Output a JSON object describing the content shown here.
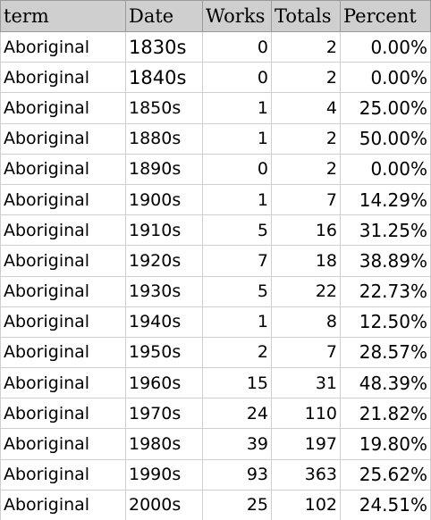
{
  "spreadsheet": {
    "columns": [
      "term",
      "Date",
      "Works",
      "Totals",
      "Percent"
    ],
    "rows": [
      [
        "Aboriginal",
        "1830s",
        "0",
        "2",
        "0.00%"
      ],
      [
        "Aboriginal",
        "1840s",
        "0",
        "2",
        "0.00%"
      ],
      [
        "Aboriginal",
        "1850s",
        "1",
        "4",
        "25.00%"
      ],
      [
        "Aboriginal",
        "1880s",
        "1",
        "2",
        "50.00%"
      ],
      [
        "Aboriginal",
        "1890s",
        "0",
        "2",
        "0.00%"
      ],
      [
        "Aboriginal",
        "1900s",
        "1",
        "7",
        "14.29%"
      ],
      [
        "Aboriginal",
        "1910s",
        "5",
        "16",
        "31.25%"
      ],
      [
        "Aboriginal",
        "1920s",
        "7",
        "18",
        "38.89%"
      ],
      [
        "Aboriginal",
        "1930s",
        "5",
        "22",
        "22.73%"
      ],
      [
        "Aboriginal",
        "1940s",
        "1",
        "8",
        "12.50%"
      ],
      [
        "Aboriginal",
        "1950s",
        "2",
        "7",
        "28.57%"
      ],
      [
        "Aboriginal",
        "1960s",
        "15",
        "31",
        "48.39%"
      ],
      [
        "Aboriginal",
        "1970s",
        "24",
        "110",
        "21.82%"
      ],
      [
        "Aboriginal",
        "1980s",
        "39",
        "197",
        "19.80%"
      ],
      [
        "Aboriginal",
        "1990s",
        "93",
        "363",
        "25.62%"
      ],
      [
        "Aboriginal",
        "2000s",
        "25",
        "102",
        "24.51%"
      ]
    ]
  }
}
